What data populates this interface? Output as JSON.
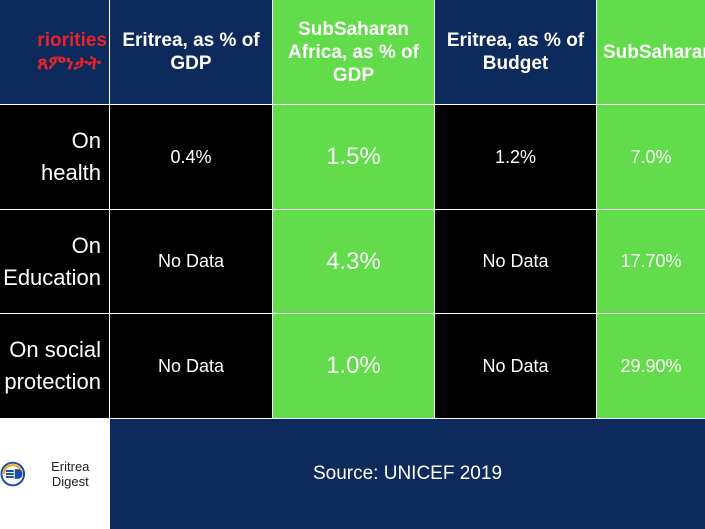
{
  "header": {
    "col0_line1": "riorities",
    "col0_line2": "ጸምነታት",
    "col1": "Eritrea, as % of GDP",
    "col2": "SubSaharan Africa, as % of GDP",
    "col3": "Eritrea, as % of Budget",
    "col4": "SubSaharan Africa, as % of Budget"
  },
  "rows": [
    {
      "label_line1": "On",
      "label_line2": "health",
      "eritrea_gdp": "0.4%",
      "ssa_gdp": "1.5%",
      "eritrea_budget": "1.2%",
      "ssa_budget": "7.0%"
    },
    {
      "label_line1": "On",
      "label_line2": "Education",
      "eritrea_gdp": "No Data",
      "ssa_gdp": "4.3%",
      "eritrea_budget": "No Data",
      "ssa_budget": "17.70%"
    },
    {
      "label_line1": "On social",
      "label_line2": "protection",
      "eritrea_gdp": "No Data",
      "ssa_gdp": "1.0%",
      "eritrea_budget": "No Data",
      "ssa_budget": "29.90%"
    }
  ],
  "footer": {
    "logo_text": "Eritrea Digest",
    "source": "Source: UNICEF 2019"
  },
  "colors": {
    "navy": "#0c2a5b",
    "green": "#62dc4a",
    "black": "#000000",
    "red": "#e8222a"
  }
}
